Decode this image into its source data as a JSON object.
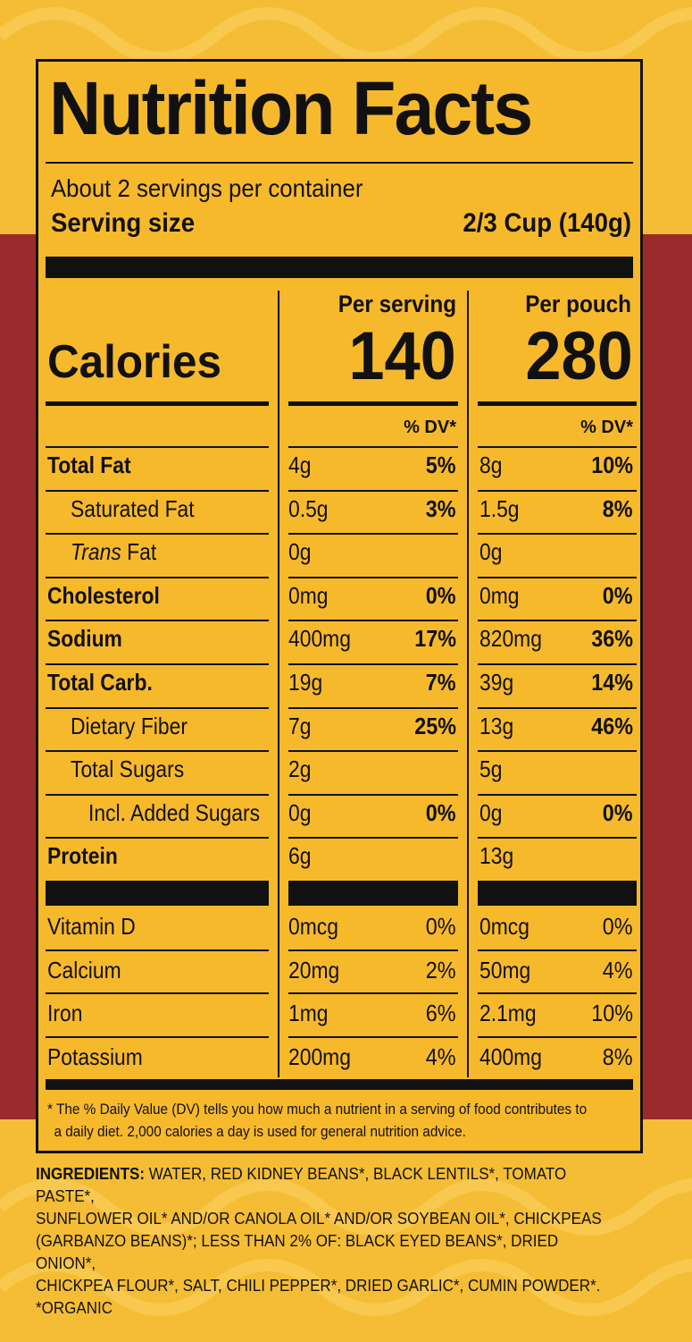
{
  "title": "Nutrition Facts",
  "servings_per_container": "About 2 servings per container",
  "serving_size_label": "Serving size",
  "serving_size_value": "2/3 Cup (140g)",
  "columns": {
    "per_serving": "Per serving",
    "per_pouch": "Per pouch"
  },
  "calories": {
    "label": "Calories",
    "per_serving": "140",
    "per_pouch": "280"
  },
  "dv_header": "% DV*",
  "nutrients": [
    {
      "name": "Total Fat",
      "serving_amount": "4g",
      "serving_dv": "5%",
      "pouch_amount": "8g",
      "pouch_dv": "10%"
    },
    {
      "name": "Saturated Fat",
      "serving_amount": "0.5g",
      "serving_dv": "3%",
      "pouch_amount": "1.5g",
      "pouch_dv": "8%"
    },
    {
      "name_italic": "Trans",
      "name": " Fat",
      "serving_amount": "0g",
      "serving_dv": "",
      "pouch_amount": "0g",
      "pouch_dv": ""
    },
    {
      "name": "Cholesterol",
      "serving_amount": "0mg",
      "serving_dv": "0%",
      "pouch_amount": "0mg",
      "pouch_dv": "0%"
    },
    {
      "name": "Sodium",
      "serving_amount": "400mg",
      "serving_dv": "17%",
      "pouch_amount": "820mg",
      "pouch_dv": "36%"
    },
    {
      "name": "Total Carb.",
      "serving_amount": "19g",
      "serving_dv": "7%",
      "pouch_amount": "39g",
      "pouch_dv": "14%"
    },
    {
      "name": "Dietary Fiber",
      "serving_amount": "7g",
      "serving_dv": "25%",
      "pouch_amount": "13g",
      "pouch_dv": "46%"
    },
    {
      "name": "Total Sugars",
      "serving_amount": "2g",
      "serving_dv": "",
      "pouch_amount": "5g",
      "pouch_dv": ""
    },
    {
      "name": "Incl. Added Sugars",
      "serving_amount": "0g",
      "serving_dv": "0%",
      "pouch_amount": "0g",
      "pouch_dv": "0%"
    },
    {
      "name": "Protein",
      "serving_amount": "6g",
      "serving_dv": "",
      "pouch_amount": "13g",
      "pouch_dv": ""
    }
  ],
  "vitamins": [
    {
      "name": "Vitamin D",
      "serving_amount": "0mcg",
      "serving_dv": "0%",
      "pouch_amount": "0mcg",
      "pouch_dv": "0%"
    },
    {
      "name": "Calcium",
      "serving_amount": "20mg",
      "serving_dv": "2%",
      "pouch_amount": "50mg",
      "pouch_dv": "4%"
    },
    {
      "name": "Iron",
      "serving_amount": "1mg",
      "serving_dv": "6%",
      "pouch_amount": "2.1mg",
      "pouch_dv": "10%"
    },
    {
      "name": "Potassium",
      "serving_amount": "200mg",
      "serving_dv": "4%",
      "pouch_amount": "400mg",
      "pouch_dv": "8%"
    }
  ],
  "footnote_line1": "* The % Daily Value (DV) tells you how much a nutrient in a serving of food contributes to",
  "footnote_line2": "a daily diet. 2,000 calories a day is used for general nutrition advice.",
  "ingredients_label": "INGREDIENTS:",
  "ingredients_line1": " WATER, RED KIDNEY BEANS*, BLACK LENTILS*, TOMATO PASTE*,",
  "ingredients_line2": "SUNFLOWER OIL* AND/OR CANOLA OIL* AND/OR SOYBEAN OIL*, CHICKPEAS",
  "ingredients_line3": "(GARBANZO BEANS)*; LESS THAN 2% OF: BLACK EYED BEANS*, DRIED ONION*,",
  "ingredients_line4": "CHICKPEA FLOUR*, SALT, CHILI PEPPER*, DRIED GARLIC*, CUMIN POWDER*.",
  "organic_note": "*ORGANIC",
  "colors": {
    "background": "#f5bd35",
    "band": "#9b2a2c",
    "ink": "#111111"
  }
}
